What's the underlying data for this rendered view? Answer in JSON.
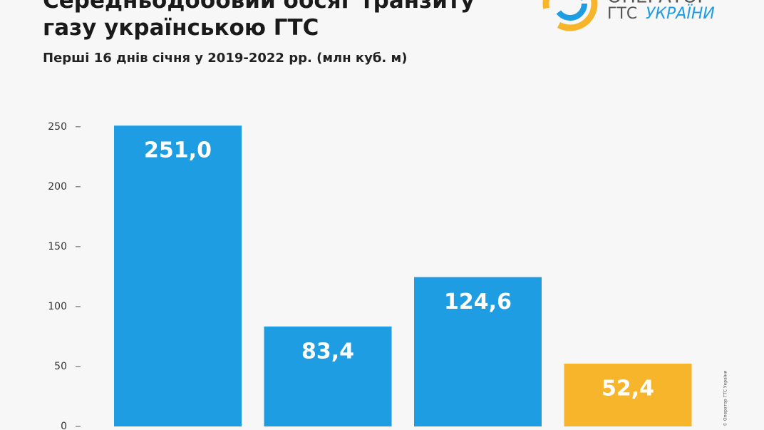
{
  "chart_data": {
    "type": "bar",
    "title": "Середньодобовий обсяг транзиту газу українською ГТС",
    "subtitle": "Перші 16 днів січня у 2019-2022 рр. (млн куб. м)",
    "categories": [
      null,
      null,
      null,
      null
    ],
    "values": [
      251.0,
      83.4,
      124.6,
      52.4
    ],
    "value_labels": [
      "251,0",
      "83,4",
      "124,6",
      "52,4"
    ],
    "colors": [
      "#1f9de2",
      "#1f9de2",
      "#1f9de2",
      "#f7b52c"
    ],
    "ylim": [
      0,
      260
    ],
    "yticks": [
      0,
      50,
      100,
      150,
      200,
      250
    ],
    "grid": false
  },
  "logo": {
    "line1": "ОПЕРАТОР",
    "line2a": "ГТС",
    "line2b": "УКРАЇНИ"
  },
  "credit": "© Оператор ГТС України"
}
